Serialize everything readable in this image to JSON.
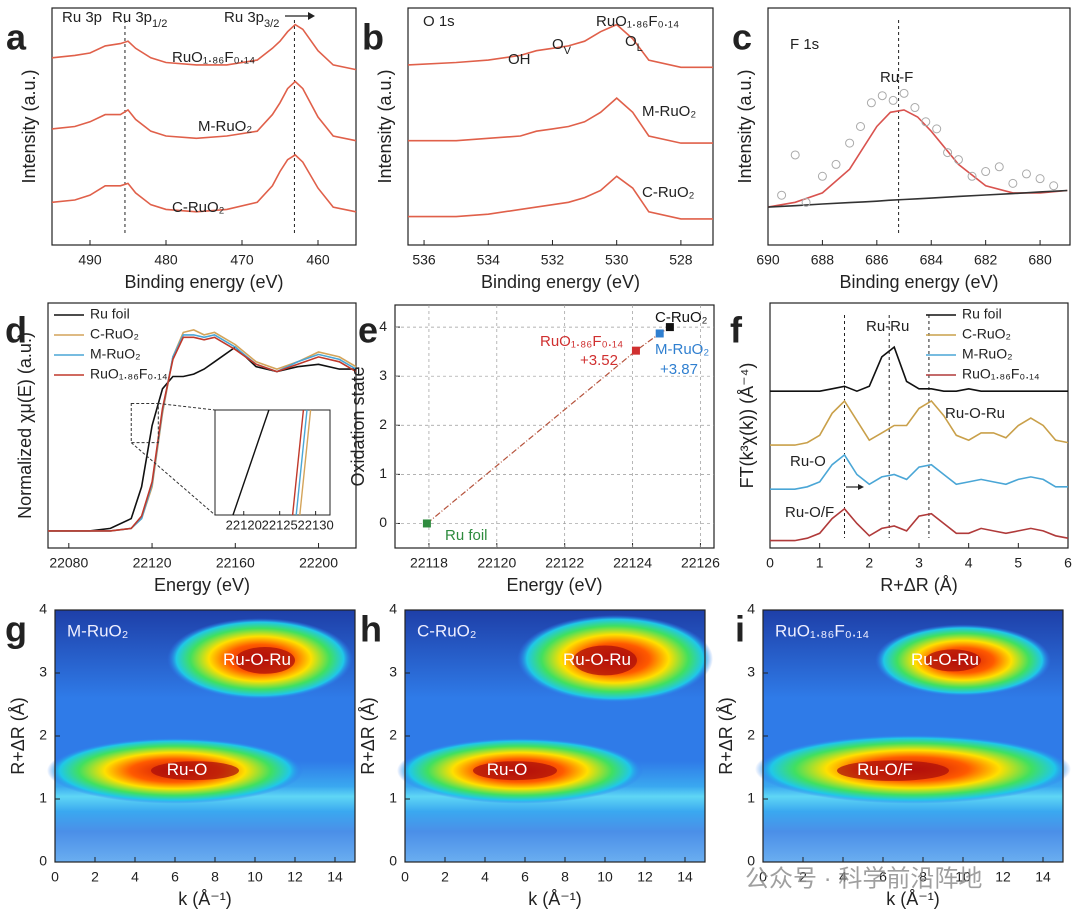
{
  "chart_data": [
    {
      "type": "line",
      "panel": "a",
      "xlabel": "Binding energy (eV)",
      "ylabel": "Intensity (a.u.)",
      "xlim": [
        495,
        455
      ],
      "xticks": [
        490,
        480,
        470,
        460
      ],
      "ylim": [
        0,
        10
      ],
      "x": [
        495,
        492,
        490,
        488,
        486,
        485,
        484,
        482,
        480,
        476,
        472,
        468,
        466,
        465,
        464,
        463,
        462,
        460,
        458,
        455
      ],
      "series": [
        {
          "name": "RuO₁.₈₆F₀.₁₄",
          "color": "#e0604a",
          "values": [
            7.9,
            8.0,
            8.1,
            8.4,
            8.5,
            8.6,
            8.3,
            7.9,
            7.7,
            7.6,
            7.6,
            7.8,
            8.3,
            8.6,
            9.0,
            9.3,
            9.1,
            8.2,
            7.6,
            7.4
          ]
        },
        {
          "name": "M-RuO₂",
          "color": "#e0604a",
          "values": [
            4.9,
            5.0,
            5.2,
            5.5,
            5.5,
            5.7,
            5.3,
            4.8,
            4.6,
            4.5,
            4.6,
            4.8,
            5.5,
            6.0,
            6.6,
            6.9,
            6.6,
            5.4,
            4.6,
            4.4
          ]
        },
        {
          "name": "C-RuO₂",
          "color": "#e0604a",
          "values": [
            1.8,
            1.9,
            2.1,
            2.5,
            2.5,
            2.6,
            2.2,
            1.7,
            1.5,
            1.4,
            1.5,
            1.8,
            2.5,
            3.1,
            3.6,
            3.8,
            3.5,
            2.4,
            1.6,
            1.4
          ]
        }
      ],
      "annotations": [
        "Ru 3p",
        {
          "text": "Ru 3p",
          "sub": "1/2"
        },
        {
          "text": "Ru 3p",
          "sub": "3/2"
        }
      ],
      "reference_lines": [
        485.4,
        463.1
      ]
    },
    {
      "type": "line",
      "panel": "b",
      "xlabel": "Binding energy (eV)",
      "ylabel": "Intensity (a.u.)",
      "xlim": [
        536.5,
        527
      ],
      "xticks": [
        536,
        534,
        532,
        530,
        528
      ],
      "ylim": [
        0,
        10
      ],
      "x": [
        536.5,
        535,
        534,
        533,
        532.5,
        532,
        531.5,
        531,
        530.5,
        530,
        529.5,
        529,
        528,
        527
      ],
      "series": [
        {
          "name": "RuO₁.₈₆F₀.₁₄",
          "color": "#e0604a",
          "values": [
            7.6,
            7.7,
            7.8,
            8.0,
            8.2,
            8.3,
            8.4,
            8.6,
            9.0,
            9.3,
            8.7,
            7.8,
            7.5,
            7.5
          ]
        },
        {
          "name": "M-RuO₂",
          "color": "#e0604a",
          "values": [
            4.4,
            4.4,
            4.5,
            4.6,
            4.8,
            4.9,
            5.0,
            5.2,
            5.6,
            6.2,
            5.6,
            4.6,
            4.3,
            4.3
          ]
        },
        {
          "name": "C-RuO₂",
          "color": "#e0604a",
          "values": [
            1.2,
            1.2,
            1.3,
            1.5,
            1.6,
            1.7,
            1.8,
            2.0,
            2.3,
            2.9,
            2.4,
            1.4,
            1.1,
            1.1
          ]
        }
      ],
      "annotations": [
        "O 1s",
        "OH",
        {
          "text": "O",
          "sub": "V"
        },
        {
          "text": "O",
          "sub": "L"
        }
      ]
    },
    {
      "type": "line",
      "panel": "c",
      "xlabel": "Binding energy (eV)",
      "ylabel": "Intensity (a.u.)",
      "xlim": [
        690,
        678.9
      ],
      "xticks": [
        690,
        688,
        686,
        684,
        682,
        680
      ],
      "ylim": [
        0,
        10
      ],
      "x": [
        690,
        689,
        688,
        687,
        686.5,
        686,
        685.5,
        685,
        684.5,
        684,
        683,
        682,
        681,
        680,
        679
      ],
      "series": [
        {
          "color": "#d9534f",
          "values": [
            1.6,
            1.8,
            2.2,
            3.2,
            4.1,
            5.0,
            5.6,
            5.7,
            5.4,
            4.8,
            3.4,
            2.5,
            2.2,
            2.2,
            2.3
          ]
        },
        {
          "color": "#333333",
          "values": [
            1.6,
            1.66,
            1.73,
            1.79,
            1.82,
            1.85,
            1.89,
            1.92,
            1.95,
            1.98,
            2.05,
            2.11,
            2.17,
            2.24,
            2.3
          ]
        }
      ],
      "points": {
        "color": "#aaaaaa",
        "x": [
          689.5,
          689,
          688.6,
          688,
          687.5,
          687,
          686.6,
          686.2,
          685.8,
          685.4,
          685,
          684.6,
          684.2,
          683.8,
          683.4,
          683,
          682.5,
          682,
          681.5,
          681,
          680.5,
          680,
          679.5
        ],
        "values": [
          2.1,
          3.8,
          1.8,
          2.9,
          3.4,
          4.3,
          5.0,
          6.0,
          6.3,
          6.1,
          6.4,
          5.8,
          5.2,
          4.9,
          3.9,
          3.6,
          2.9,
          3.1,
          3.3,
          2.6,
          3.0,
          2.8,
          2.5
        ]
      },
      "annotations": [
        "F 1s",
        "Ru-F"
      ],
      "reference_lines": [
        685.2
      ]
    },
    {
      "type": "line",
      "panel": "d",
      "xlabel": "Energy (eV)",
      "ylabel": "Normalized χμ(E) (a.u.)",
      "xlim": [
        22070,
        22218
      ],
      "xticks": [
        22080,
        22120,
        22160,
        22200
      ],
      "ylim": [
        0,
        10
      ],
      "legend": "upper left",
      "x": [
        22070,
        22090,
        22100,
        22110,
        22115,
        22120,
        22125,
        22130,
        22135,
        22140,
        22145,
        22150,
        22160,
        22170,
        22180,
        22190,
        22200,
        22210,
        22218
      ],
      "series": [
        {
          "name": "Ru foil",
          "color": "#111111",
          "values": [
            0.7,
            0.7,
            0.8,
            1.2,
            2.5,
            5.0,
            6.5,
            7.0,
            7.0,
            7.1,
            7.3,
            7.6,
            8.2,
            7.4,
            7.2,
            7.4,
            7.5,
            7.3,
            7.3
          ]
        },
        {
          "name": "C-RuO₂",
          "color": "#d4a45a",
          "values": [
            0.7,
            0.7,
            0.7,
            0.8,
            1.2,
            2.5,
            5.5,
            7.8,
            8.8,
            8.9,
            8.7,
            8.8,
            8.3,
            7.6,
            7.3,
            7.6,
            8.0,
            7.8,
            7.4
          ]
        },
        {
          "name": "M-RuO₂",
          "color": "#4aa6d6",
          "values": [
            0.7,
            0.7,
            0.7,
            0.8,
            1.2,
            2.6,
            5.6,
            7.8,
            8.7,
            8.7,
            8.6,
            8.7,
            8.2,
            7.5,
            7.2,
            7.6,
            7.9,
            7.7,
            7.3
          ]
        },
        {
          "name": "RuO₁.₈₆F₀.₁₄",
          "color": "#c0392b",
          "values": [
            0.7,
            0.7,
            0.7,
            0.8,
            1.3,
            2.7,
            5.7,
            7.7,
            8.6,
            8.6,
            8.5,
            8.6,
            8.1,
            7.5,
            7.2,
            7.5,
            7.8,
            7.6,
            7.2
          ]
        }
      ],
      "inset": {
        "xlim": [
          22116,
          22132
        ],
        "xticks": [
          22120,
          22125,
          22130
        ],
        "ylim": [
          0,
          1
        ],
        "series": [
          {
            "color": "#111111",
            "x": [
              22118.5,
              22123.5
            ],
            "values": [
              0,
              1
            ]
          },
          {
            "color": "#d4a45a",
            "x": [
              22127.8,
              22129.3
            ],
            "values": [
              0,
              1
            ]
          },
          {
            "color": "#4aa6d6",
            "x": [
              22127.3,
              22128.8
            ],
            "values": [
              0,
              1
            ]
          },
          {
            "color": "#c0392b",
            "x": [
              22126.8,
              22128.3
            ],
            "values": [
              0,
              1
            ]
          }
        ]
      }
    },
    {
      "type": "scatter",
      "panel": "e",
      "xlabel": "Energy (eV)",
      "ylabel": "Oxidation state",
      "xlim": [
        22117,
        22126.4
      ],
      "xticks": [
        22118,
        22120,
        22122,
        22124,
        22126
      ],
      "ylim": [
        -0.5,
        4.45
      ],
      "yticks": [
        0,
        1,
        2,
        3,
        4
      ],
      "grid": true,
      "fit_color": "#b5523b",
      "x": [
        22117.94,
        22124.1,
        22124.8,
        22125.1
      ],
      "values": [
        0,
        3.52,
        3.87,
        4.0
      ],
      "value_labels": [
        null,
        "+3.52",
        "+3.87",
        null
      ],
      "labels": [
        "Ru foil",
        "RuO₁.₈₆F₀.₁₄",
        "M-RuO₂",
        "C-RuO₂"
      ],
      "colors": [
        "#2e8b3e",
        "#d03030",
        "#2f7fd0",
        "#111111"
      ]
    },
    {
      "type": "line",
      "panel": "f",
      "xlabel": "R+ΔR (Å)",
      "ylabel": "FT(k³χ(k)) (Å⁻⁴)",
      "xlim": [
        0,
        6
      ],
      "xticks": [
        0,
        1,
        2,
        3,
        4,
        5,
        6
      ],
      "ylim": [
        0,
        10
      ],
      "legend": "upper right",
      "x": [
        0,
        0.25,
        0.5,
        0.75,
        1,
        1.25,
        1.5,
        1.75,
        2,
        2.25,
        2.5,
        2.75,
        3,
        3.25,
        3.5,
        3.75,
        4,
        4.25,
        4.5,
        4.75,
        5,
        5.25,
        5.5,
        5.75,
        6
      ],
      "series": [
        {
          "name": "Ru foil",
          "color": "#111111",
          "values": [
            6.4,
            6.4,
            6.4,
            6.4,
            6.4,
            6.5,
            6.6,
            6.4,
            6.6,
            7.8,
            8.2,
            6.8,
            6.5,
            6.5,
            6.4,
            6.4,
            6.5,
            6.4,
            6.4,
            6.4,
            6.4,
            6.4,
            6.4,
            6.4,
            6.4
          ]
        },
        {
          "name": "C-RuO₂",
          "color": "#c9a04a",
          "values": [
            4.2,
            4.2,
            4.2,
            4.3,
            4.6,
            5.5,
            6.0,
            5.2,
            4.4,
            4.7,
            5.0,
            5.0,
            5.7,
            6.0,
            5.4,
            4.6,
            4.4,
            4.7,
            4.7,
            4.5,
            5.0,
            5.3,
            5.0,
            4.4,
            4.3
          ]
        },
        {
          "name": "M-RuO₂",
          "color": "#4aa6d6",
          "values": [
            2.4,
            2.4,
            2.4,
            2.5,
            2.7,
            3.4,
            3.8,
            3.0,
            2.6,
            2.9,
            3.0,
            2.8,
            3.3,
            3.4,
            3.0,
            2.6,
            2.7,
            2.8,
            2.7,
            2.6,
            2.8,
            2.9,
            2.8,
            2.5,
            2.5
          ]
        },
        {
          "name": "RuO₁.₈₆F₀.₁₄",
          "color": "#b03a3a",
          "values": [
            0.3,
            0.3,
            0.3,
            0.4,
            0.6,
            1.2,
            1.6,
            1.0,
            0.5,
            0.8,
            0.9,
            0.7,
            1.3,
            1.4,
            1.0,
            0.6,
            0.6,
            0.8,
            0.7,
            0.6,
            0.7,
            0.8,
            0.7,
            0.5,
            0.4
          ]
        }
      ],
      "annotations": [
        "Ru-Ru",
        "Ru-O-Ru",
        "Ru-O",
        "Ru-O/F"
      ],
      "reference_lines": [
        1.5,
        2.4,
        3.2
      ]
    },
    {
      "type": "contour",
      "panel": "g",
      "label": "M-RuO₂",
      "xlabel": "k (Å⁻¹)",
      "ylabel": "R+ΔR (Å)",
      "xlim": [
        0,
        15
      ],
      "xticks": [
        0,
        2,
        4,
        6,
        8,
        10,
        12,
        14
      ],
      "ylim": [
        0,
        4
      ],
      "yticks": [
        0,
        1,
        2,
        3,
        4
      ],
      "peaks": [
        {
          "label": "Ru-O",
          "k": 7,
          "r": 1.45,
          "k_span": [
            0.5,
            11.5
          ],
          "r_span": [
            1.15,
            1.75
          ]
        },
        {
          "label": "Ru-O-Ru",
          "k": 10.5,
          "r": 3.2,
          "k_span": [
            6.5,
            14
          ],
          "r_span": [
            2.8,
            3.65
          ]
        }
      ]
    },
    {
      "type": "contour",
      "panel": "h",
      "label": "C-RuO₂",
      "xlabel": "k (Å⁻¹)",
      "ylabel": "R+ΔR (Å)",
      "xlim": [
        0,
        15
      ],
      "xticks": [
        0,
        2,
        4,
        6,
        8,
        10,
        12,
        14
      ],
      "ylim": [
        0,
        4
      ],
      "yticks": [
        0,
        1,
        2,
        3,
        4
      ],
      "peaks": [
        {
          "label": "Ru-O",
          "k": 5.5,
          "r": 1.45,
          "k_span": [
            0.5,
            11
          ],
          "r_span": [
            1.15,
            1.75
          ]
        },
        {
          "label": "Ru-O-Ru",
          "k": 10,
          "r": 3.2,
          "k_span": [
            6.5,
            14.5
          ],
          "r_span": [
            2.75,
            3.7
          ]
        }
      ]
    },
    {
      "type": "contour",
      "panel": "i",
      "label": "RuO₁.₈₆F₀.₁₄",
      "xlabel": "k (Å⁻¹)",
      "ylabel": "R+ΔR (Å)",
      "xlim": [
        0,
        15
      ],
      "xticks": [
        0,
        2,
        4,
        6,
        8,
        10,
        12,
        14
      ],
      "ylim": [
        0,
        4
      ],
      "yticks": [
        0,
        1,
        2,
        3,
        4
      ],
      "peaks": [
        {
          "label": "Ru-O/F",
          "k": 6.5,
          "r": 1.45,
          "k_span": [
            0.5,
            14.5
          ],
          "r_span": [
            1.15,
            1.8
          ]
        },
        {
          "label": "Ru-O-Ru",
          "k": 9.5,
          "r": 3.2,
          "k_span": [
            6.5,
            13.5
          ],
          "r_span": [
            2.85,
            3.55
          ]
        }
      ]
    }
  ],
  "watermark": "公众号 · 科学前沿阵地"
}
